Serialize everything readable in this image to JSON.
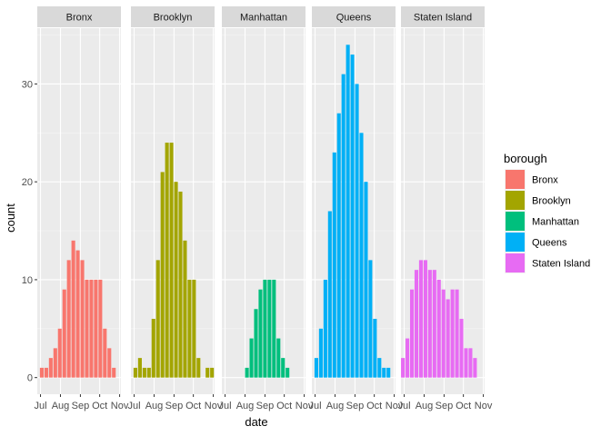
{
  "chart_data": {
    "type": "bar",
    "facet_by": "borough",
    "xlabel": "date",
    "ylabel": "count",
    "legend_title": "borough",
    "legend_position": "right",
    "grid": true,
    "ylim": [
      -1.7,
      35.7
    ],
    "y_ticks": [
      0,
      10,
      20,
      30
    ],
    "x_tick_labels": [
      "Jul",
      "Aug",
      "Sep",
      "Oct",
      "Nov"
    ],
    "xlim": [
      "2016-06-26",
      "2016-11-03"
    ],
    "x_range_days": [
      -5,
      125
    ],
    "x_tick_days": [
      0,
      31,
      62,
      92,
      123
    ],
    "series": [
      {
        "name": "Bronx",
        "color": "#F8766D",
        "values": [
          {
            "x": "2016-07-03",
            "y": 1
          },
          {
            "x": "2016-07-10",
            "y": 1
          },
          {
            "x": "2016-07-17",
            "y": 2
          },
          {
            "x": "2016-07-24",
            "y": 3
          },
          {
            "x": "2016-07-31",
            "y": 5
          },
          {
            "x": "2016-08-07",
            "y": 9
          },
          {
            "x": "2016-08-14",
            "y": 12
          },
          {
            "x": "2016-08-21",
            "y": 14
          },
          {
            "x": "2016-08-28",
            "y": 13
          },
          {
            "x": "2016-09-04",
            "y": 12
          },
          {
            "x": "2016-09-11",
            "y": 10
          },
          {
            "x": "2016-09-18",
            "y": 10
          },
          {
            "x": "2016-09-25",
            "y": 10
          },
          {
            "x": "2016-10-02",
            "y": 10
          },
          {
            "x": "2016-10-09",
            "y": 5
          },
          {
            "x": "2016-10-16",
            "y": 3
          },
          {
            "x": "2016-10-23",
            "y": 1
          }
        ]
      },
      {
        "name": "Brooklyn",
        "color": "#A3A500",
        "values": [
          {
            "x": "2016-07-03",
            "y": 1
          },
          {
            "x": "2016-07-10",
            "y": 2
          },
          {
            "x": "2016-07-17",
            "y": 1
          },
          {
            "x": "2016-07-24",
            "y": 1
          },
          {
            "x": "2016-07-31",
            "y": 6
          },
          {
            "x": "2016-08-07",
            "y": 12
          },
          {
            "x": "2016-08-14",
            "y": 21
          },
          {
            "x": "2016-08-21",
            "y": 24
          },
          {
            "x": "2016-08-28",
            "y": 24
          },
          {
            "x": "2016-09-04",
            "y": 20
          },
          {
            "x": "2016-09-11",
            "y": 19
          },
          {
            "x": "2016-09-18",
            "y": 14
          },
          {
            "x": "2016-09-25",
            "y": 10
          },
          {
            "x": "2016-10-02",
            "y": 10
          },
          {
            "x": "2016-10-09",
            "y": 2
          },
          {
            "x": "2016-10-23",
            "y": 1
          },
          {
            "x": "2016-10-30",
            "y": 1
          }
        ]
      },
      {
        "name": "Manhattan",
        "color": "#00BF7D",
        "values": [
          {
            "x": "2016-08-04",
            "y": 1
          },
          {
            "x": "2016-08-11",
            "y": 4
          },
          {
            "x": "2016-08-18",
            "y": 7
          },
          {
            "x": "2016-08-25",
            "y": 9
          },
          {
            "x": "2016-09-01",
            "y": 10
          },
          {
            "x": "2016-09-08",
            "y": 10
          },
          {
            "x": "2016-09-15",
            "y": 10
          },
          {
            "x": "2016-09-22",
            "y": 4
          },
          {
            "x": "2016-09-29",
            "y": 2
          },
          {
            "x": "2016-10-06",
            "y": 1
          }
        ]
      },
      {
        "name": "Queens",
        "color": "#00B0F6",
        "values": [
          {
            "x": "2016-07-03",
            "y": 2
          },
          {
            "x": "2016-07-10",
            "y": 5
          },
          {
            "x": "2016-07-17",
            "y": 10
          },
          {
            "x": "2016-07-24",
            "y": 17
          },
          {
            "x": "2016-07-31",
            "y": 23
          },
          {
            "x": "2016-08-07",
            "y": 27
          },
          {
            "x": "2016-08-14",
            "y": 31
          },
          {
            "x": "2016-08-21",
            "y": 34
          },
          {
            "x": "2016-08-28",
            "y": 33
          },
          {
            "x": "2016-09-04",
            "y": 30
          },
          {
            "x": "2016-09-11",
            "y": 25
          },
          {
            "x": "2016-09-18",
            "y": 20
          },
          {
            "x": "2016-09-25",
            "y": 12
          },
          {
            "x": "2016-10-02",
            "y": 6
          },
          {
            "x": "2016-10-09",
            "y": 2
          },
          {
            "x": "2016-10-16",
            "y": 1
          },
          {
            "x": "2016-10-23",
            "y": 1
          }
        ]
      },
      {
        "name": "Staten Island",
        "color": "#E76BF3",
        "values": [
          {
            "x": "2016-06-29",
            "y": 2
          },
          {
            "x": "2016-07-06",
            "y": 4
          },
          {
            "x": "2016-07-13",
            "y": 9
          },
          {
            "x": "2016-07-20",
            "y": 11
          },
          {
            "x": "2016-07-27",
            "y": 12
          },
          {
            "x": "2016-08-03",
            "y": 12
          },
          {
            "x": "2016-08-10",
            "y": 11
          },
          {
            "x": "2016-08-17",
            "y": 11
          },
          {
            "x": "2016-08-24",
            "y": 10
          },
          {
            "x": "2016-08-31",
            "y": 9
          },
          {
            "x": "2016-09-07",
            "y": 8
          },
          {
            "x": "2016-09-14",
            "y": 9
          },
          {
            "x": "2016-09-21",
            "y": 9
          },
          {
            "x": "2016-09-28",
            "y": 6
          },
          {
            "x": "2016-10-05",
            "y": 3
          },
          {
            "x": "2016-10-12",
            "y": 3
          },
          {
            "x": "2016-10-19",
            "y": 2
          }
        ]
      }
    ]
  }
}
